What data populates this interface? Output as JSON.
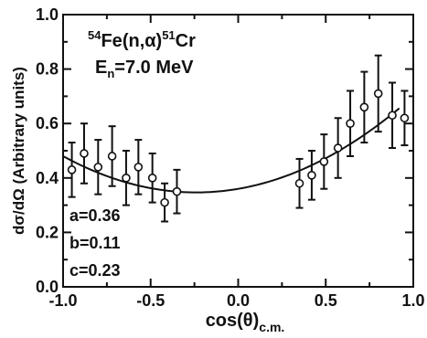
{
  "chart_data": {
    "type": "scatter",
    "title": {
      "mass_in": "54",
      "element_in": "Fe",
      "reaction": "(n,α)",
      "mass_out": "51",
      "element_out": "Cr"
    },
    "energy": {
      "symbol": "E",
      "subscript": "n",
      "value": "=7.0 MeV"
    },
    "ylabel": "dσ/dΩ (Arbitrary units)",
    "xlabel": {
      "main": "cos(θ)",
      "subscript": "c.m."
    },
    "xlim": [
      -1.0,
      1.0
    ],
    "ylim": [
      0.0,
      1.0
    ],
    "x_ticks": [
      "-1.0",
      "-0.5",
      "0.0",
      "0.5",
      "1.0"
    ],
    "y_ticks": [
      "0.0",
      "0.2",
      "0.4",
      "0.6",
      "0.8",
      "1.0"
    ],
    "series": [
      {
        "marker": "open-circle",
        "x": [
          -0.95,
          -0.88,
          -0.8,
          -0.72,
          -0.64,
          -0.57,
          -0.49,
          -0.42,
          -0.35,
          0.35,
          0.42,
          0.49,
          0.57,
          0.64,
          0.72,
          0.8,
          0.88,
          0.95
        ],
        "y": [
          0.43,
          0.49,
          0.44,
          0.48,
          0.4,
          0.44,
          0.4,
          0.31,
          0.35,
          0.38,
          0.41,
          0.46,
          0.51,
          0.6,
          0.66,
          0.71,
          0.63,
          0.62
        ],
        "yerr": [
          0.1,
          0.11,
          0.1,
          0.11,
          0.1,
          0.1,
          0.09,
          0.07,
          0.08,
          0.09,
          0.09,
          0.1,
          0.11,
          0.12,
          0.13,
          0.14,
          0.12,
          0.1
        ]
      },
      {
        "type": "line",
        "fit": {
          "a": 0.36,
          "b": 0.11,
          "c": 0.23,
          "x_range": [
            -1.0,
            0.92
          ]
        }
      }
    ],
    "annotations": [
      "a=0.36",
      "b=0.11",
      "c=0.23"
    ]
  },
  "colors": {
    "ink": "#111111",
    "background": "#ffffff"
  }
}
